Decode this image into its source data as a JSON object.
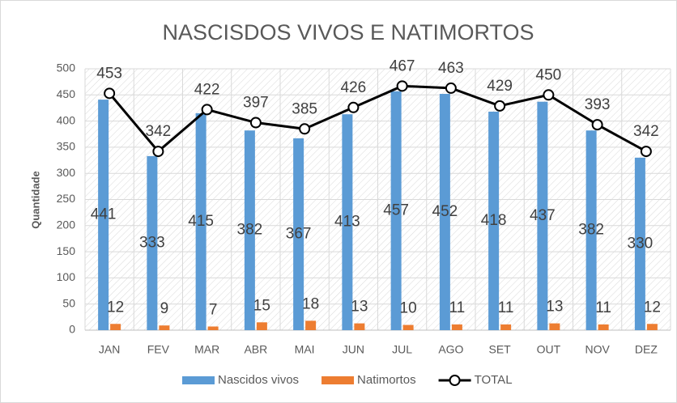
{
  "chart_data": {
    "type": "bar",
    "title": "NASCISDOS VIVOS E NATIMORTOS",
    "y_label": "Quantidade",
    "categories": [
      "JAN",
      "FEV",
      "MAR",
      "ABR",
      "MAI",
      "JUN",
      "JUL",
      "AGO",
      "SET",
      "OUT",
      "NOV",
      "DEZ"
    ],
    "series": [
      {
        "name": "Nascidos vivos",
        "type": "bar",
        "color": "#5b9bd5",
        "values": [
          441,
          333,
          415,
          382,
          367,
          413,
          457,
          452,
          418,
          437,
          382,
          330
        ]
      },
      {
        "name": "Natimortos",
        "type": "bar",
        "color": "#ed7d31",
        "values": [
          12,
          9,
          7,
          15,
          18,
          13,
          10,
          11,
          11,
          13,
          11,
          12
        ]
      },
      {
        "name": "TOTAL",
        "type": "line",
        "color": "#000000",
        "values": [
          453,
          342,
          422,
          397,
          385,
          426,
          467,
          463,
          429,
          450,
          393,
          342
        ]
      }
    ],
    "ylim": [
      0,
      500
    ],
    "yticks": [
      0,
      50,
      100,
      150,
      200,
      250,
      300,
      350,
      400,
      450,
      500
    ],
    "grid": true,
    "legend": "bottom"
  }
}
